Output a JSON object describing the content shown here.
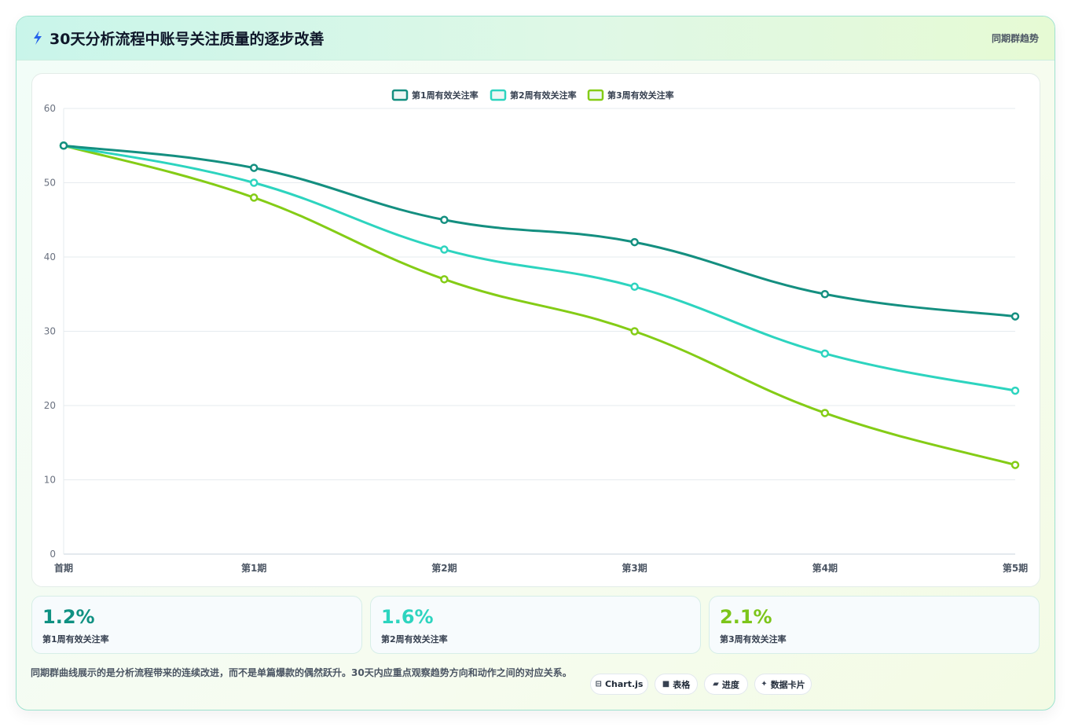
{
  "header": {
    "title": "30天分析流程中账号关注质量的逐步改善",
    "tag": "同期群趋势",
    "icon": "lightning-icon"
  },
  "chart_data": {
    "type": "line",
    "categories": [
      "首期",
      "第1期",
      "第2期",
      "第3期",
      "第4期",
      "第5期"
    ],
    "ylim": [
      0,
      60
    ],
    "yticks": [
      0,
      10,
      20,
      30,
      40,
      50,
      60
    ],
    "grid": true,
    "legend_position": "top-center",
    "series": [
      {
        "name": "第1周有效关注率",
        "color": "#148f80",
        "values": [
          55,
          52,
          45,
          42,
          35,
          32
        ]
      },
      {
        "name": "第2周有效关注率",
        "color": "#2dd4bf",
        "values": [
          55,
          50,
          41,
          36,
          27,
          22
        ]
      },
      {
        "name": "第3周有效关注率",
        "color": "#84cc16",
        "values": [
          55,
          48,
          37,
          30,
          19,
          12
        ]
      }
    ]
  },
  "stats": [
    {
      "value": "1.2%",
      "label": "第1周有效关注率",
      "color": "#0f9182"
    },
    {
      "value": "1.6%",
      "label": "第2周有效关注率",
      "color": "#2dd4bf"
    },
    {
      "value": "2.1%",
      "label": "第3周有效关注率",
      "color": "#7cc51a"
    }
  ],
  "note": "同期群曲线展示的是分析流程带来的连续改进，而不是单篇爆款的偶然跃升。30天内应重点观察趋势方向和动作之间的对应关系。",
  "pills": [
    {
      "icon": "⊟",
      "icon_name": "chart-icon",
      "label": "Chart.js"
    },
    {
      "icon": "■",
      "icon_name": "table-icon",
      "label": "表格"
    },
    {
      "icon": "▰",
      "icon_name": "progress-icon",
      "label": "进度"
    },
    {
      "icon": "✦",
      "icon_name": "sparkle-icon",
      "label": "数据卡片"
    }
  ]
}
